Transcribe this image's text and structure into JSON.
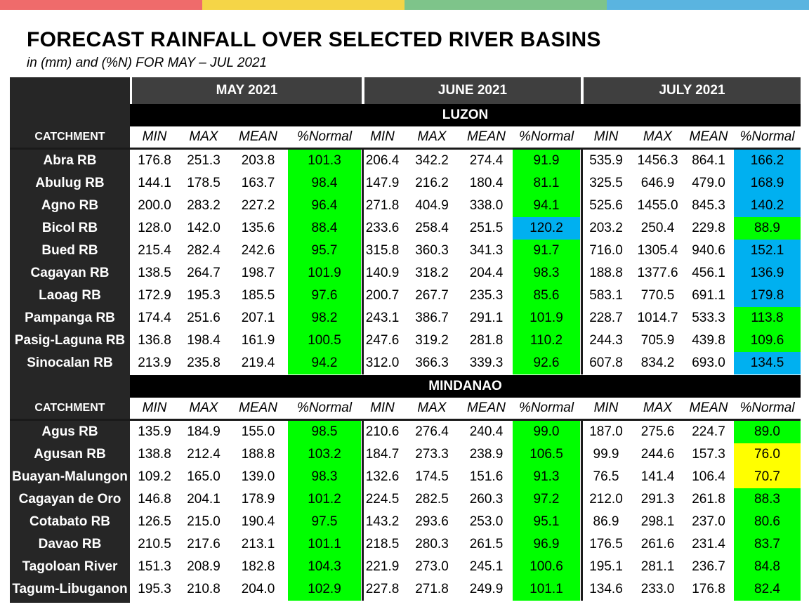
{
  "title": "FORECAST RAINFALL OVER SELECTED RIVER BASINS",
  "subtitle": "in (mm) and (%N) FOR MAY – JUL 2021",
  "colors": {
    "top_bar": [
      "#ef6b6b",
      "#f5d547",
      "#7ec48a",
      "#5ab4e0"
    ],
    "normal": "#00ff00",
    "above_normal": "#00b0f0",
    "below_normal": "#ffff00"
  },
  "months": [
    "MAY 2021",
    "JUNE 2021",
    "JULY 2021"
  ],
  "column_headers": [
    "MIN",
    "MAX",
    "MEAN",
    "%Normal"
  ],
  "catchment_label": "CATCHMENT",
  "regions": [
    {
      "name": "LUZON",
      "rows": [
        {
          "name": "Abra RB",
          "may": [
            "176.8",
            "251.3",
            "203.8",
            "101.3"
          ],
          "jun": [
            "206.4",
            "342.2",
            "274.4",
            "91.9"
          ],
          "jul": [
            "535.9",
            "1456.3",
            "864.1",
            "166.2"
          ],
          "cls": [
            "normal",
            "normal",
            "above_normal"
          ]
        },
        {
          "name": "Abulug RB",
          "may": [
            "144.1",
            "178.5",
            "163.7",
            "98.4"
          ],
          "jun": [
            "147.9",
            "216.2",
            "180.4",
            "81.1"
          ],
          "jul": [
            "325.5",
            "646.9",
            "479.0",
            "168.9"
          ],
          "cls": [
            "normal",
            "normal",
            "above_normal"
          ]
        },
        {
          "name": "Agno RB",
          "may": [
            "200.0",
            "283.2",
            "227.2",
            "96.4"
          ],
          "jun": [
            "271.8",
            "404.9",
            "338.0",
            "94.1"
          ],
          "jul": [
            "525.6",
            "1455.0",
            "845.3",
            "140.2"
          ],
          "cls": [
            "normal",
            "normal",
            "above_normal"
          ]
        },
        {
          "name": "Bicol RB",
          "may": [
            "128.0",
            "142.0",
            "135.6",
            "88.4"
          ],
          "jun": [
            "233.6",
            "258.4",
            "251.5",
            "120.2"
          ],
          "jul": [
            "203.2",
            "250.4",
            "229.8",
            "88.9"
          ],
          "cls": [
            "normal",
            "above_normal",
            "normal"
          ]
        },
        {
          "name": "Bued RB",
          "may": [
            "215.4",
            "282.4",
            "242.6",
            "95.7"
          ],
          "jun": [
            "315.8",
            "360.3",
            "341.3",
            "91.7"
          ],
          "jul": [
            "716.0",
            "1305.4",
            "940.6",
            "152.1"
          ],
          "cls": [
            "normal",
            "normal",
            "above_normal"
          ]
        },
        {
          "name": "Cagayan RB",
          "may": [
            "138.5",
            "264.7",
            "198.7",
            "101.9"
          ],
          "jun": [
            "140.9",
            "318.2",
            "204.4",
            "98.3"
          ],
          "jul": [
            "188.8",
            "1377.6",
            "456.1",
            "136.9"
          ],
          "cls": [
            "normal",
            "normal",
            "above_normal"
          ]
        },
        {
          "name": "Laoag RB",
          "may": [
            "172.9",
            "195.3",
            "185.5",
            "97.6"
          ],
          "jun": [
            "200.7",
            "267.7",
            "235.3",
            "85.6"
          ],
          "jul": [
            "583.1",
            "770.5",
            "691.1",
            "179.8"
          ],
          "cls": [
            "normal",
            "normal",
            "above_normal"
          ]
        },
        {
          "name": "Pampanga RB",
          "may": [
            "174.4",
            "251.6",
            "207.1",
            "98.2"
          ],
          "jun": [
            "243.1",
            "386.7",
            "291.1",
            "101.9"
          ],
          "jul": [
            "228.7",
            "1014.7",
            "533.3",
            "113.8"
          ],
          "cls": [
            "normal",
            "normal",
            "normal"
          ]
        },
        {
          "name": "Pasig-Laguna RB",
          "may": [
            "136.8",
            "198.4",
            "161.9",
            "100.5"
          ],
          "jun": [
            "247.6",
            "319.2",
            "281.8",
            "110.2"
          ],
          "jul": [
            "244.3",
            "705.9",
            "439.8",
            "109.6"
          ],
          "cls": [
            "normal",
            "normal",
            "normal"
          ]
        },
        {
          "name": "Sinocalan RB",
          "may": [
            "213.9",
            "235.8",
            "219.4",
            "94.2"
          ],
          "jun": [
            "312.0",
            "366.3",
            "339.3",
            "92.6"
          ],
          "jul": [
            "607.8",
            "834.2",
            "693.0",
            "134.5"
          ],
          "cls": [
            "normal",
            "normal",
            "above_normal"
          ]
        }
      ]
    },
    {
      "name": "MINDANAO",
      "rows": [
        {
          "name": "Agus RB",
          "may": [
            "135.9",
            "184.9",
            "155.0",
            "98.5"
          ],
          "jun": [
            "210.6",
            "276.4",
            "240.4",
            "99.0"
          ],
          "jul": [
            "187.0",
            "275.6",
            "224.7",
            "89.0"
          ],
          "cls": [
            "normal",
            "normal",
            "normal"
          ]
        },
        {
          "name": "Agusan RB",
          "may": [
            "138.8",
            "212.4",
            "188.8",
            "103.2"
          ],
          "jun": [
            "184.7",
            "273.3",
            "238.9",
            "106.5"
          ],
          "jul": [
            "99.9",
            "244.6",
            "157.3",
            "76.0"
          ],
          "cls": [
            "normal",
            "normal",
            "below_normal"
          ]
        },
        {
          "name": "Buayan-Malungon",
          "may": [
            "109.2",
            "165.0",
            "139.0",
            "98.3"
          ],
          "jun": [
            "132.6",
            "174.5",
            "151.6",
            "91.3"
          ],
          "jul": [
            "76.5",
            "141.4",
            "106.4",
            "70.7"
          ],
          "cls": [
            "normal",
            "normal",
            "below_normal"
          ]
        },
        {
          "name": "Cagayan de Oro",
          "may": [
            "146.8",
            "204.1",
            "178.9",
            "101.2"
          ],
          "jun": [
            "224.5",
            "282.5",
            "260.3",
            "97.2"
          ],
          "jul": [
            "212.0",
            "291.3",
            "261.8",
            "88.3"
          ],
          "cls": [
            "normal",
            "normal",
            "normal"
          ]
        },
        {
          "name": "Cotabato RB",
          "may": [
            "126.5",
            "215.0",
            "190.4",
            "97.5"
          ],
          "jun": [
            "143.2",
            "293.6",
            "253.0",
            "95.1"
          ],
          "jul": [
            "86.9",
            "298.1",
            "237.0",
            "80.6"
          ],
          "cls": [
            "normal",
            "normal",
            "normal"
          ]
        },
        {
          "name": "Davao RB",
          "may": [
            "210.5",
            "217.6",
            "213.1",
            "101.1"
          ],
          "jun": [
            "218.5",
            "280.3",
            "261.5",
            "96.9"
          ],
          "jul": [
            "176.5",
            "261.6",
            "231.4",
            "83.7"
          ],
          "cls": [
            "normal",
            "normal",
            "normal"
          ]
        },
        {
          "name": "Tagoloan River",
          "may": [
            "151.3",
            "208.9",
            "182.8",
            "104.3"
          ],
          "jun": [
            "221.9",
            "273.0",
            "245.1",
            "100.6"
          ],
          "jul": [
            "195.1",
            "281.1",
            "236.7",
            "84.8"
          ],
          "cls": [
            "normal",
            "normal",
            "normal"
          ]
        },
        {
          "name": "Tagum-Libuganon",
          "may": [
            "195.3",
            "210.8",
            "204.0",
            "102.9"
          ],
          "jun": [
            "227.8",
            "271.8",
            "249.9",
            "101.1"
          ],
          "jul": [
            "134.6",
            "233.0",
            "176.8",
            "82.4"
          ],
          "cls": [
            "normal",
            "normal",
            "normal"
          ]
        }
      ]
    }
  ]
}
